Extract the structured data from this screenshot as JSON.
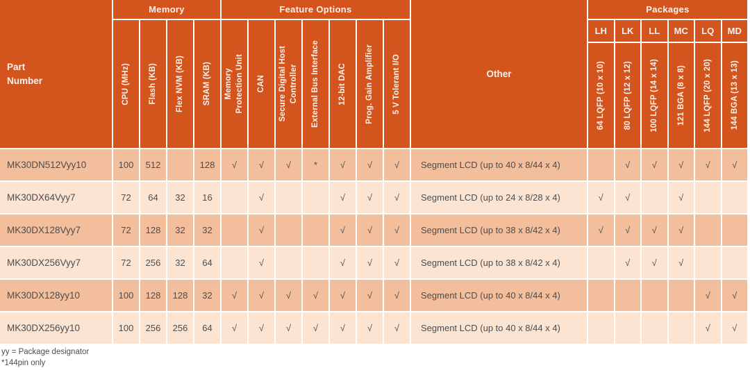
{
  "header": {
    "part_number": "Part\nNumber",
    "groups": {
      "memory": "Memory",
      "feature_options": "Feature Options",
      "other": "Other",
      "packages": "Packages"
    },
    "memory_columns": [
      "CPU (MHz)",
      "Flash (KB)",
      "Flex NVM (KB)",
      "SRAM (KB)"
    ],
    "feature_columns": [
      "Memory\nProtection Unit",
      "CAN",
      "Secure Digital Host\nController",
      "External Bus Interface",
      "12-bit DAC",
      "Prog. Gain Amplifier",
      "5 V Tolerant I/O"
    ],
    "package_codes": [
      "LH",
      "LK",
      "LL",
      "MC",
      "LQ",
      "MD"
    ],
    "package_descriptions": [
      "64 LQFP  (10 x 10)",
      "80 LQFP  (12 x 12)",
      "100 LQFP  (14 x 14)",
      "121 BGA  (8 x 8)",
      "144 LQFP  (20 x 20)",
      "144 BGA  (13 x 13)"
    ]
  },
  "check_symbol": "√",
  "rows": [
    {
      "part": "MK30DN512Vyy10",
      "cpu": "100",
      "flash": "512",
      "flexnvm": "",
      "sram": "128",
      "features": [
        "√",
        "√",
        "√",
        "*",
        "√",
        "√",
        "√"
      ],
      "other": "Segment LCD (up to 40 x 8/44 x 4)",
      "packages": [
        "",
        "√",
        "√",
        "√",
        "√",
        "√"
      ]
    },
    {
      "part": "MK30DX64Vyy7",
      "cpu": "72",
      "flash": "64",
      "flexnvm": "32",
      "sram": "16",
      "features": [
        "",
        "√",
        "",
        "",
        "√",
        "√",
        "√"
      ],
      "other": "Segment LCD (up to 24 x 8/28 x 4)",
      "packages": [
        "√",
        "√",
        "",
        "√",
        "",
        ""
      ]
    },
    {
      "part": "MK30DX128Vyy7",
      "cpu": "72",
      "flash": "128",
      "flexnvm": "32",
      "sram": "32",
      "features": [
        "",
        "√",
        "",
        "",
        "√",
        "√",
        "√"
      ],
      "other": "Segment LCD (up to 38 x 8/42 x 4)",
      "packages": [
        "√",
        "√",
        "√",
        "√",
        "",
        ""
      ]
    },
    {
      "part": "MK30DX256Vyy7",
      "cpu": "72",
      "flash": "256",
      "flexnvm": "32",
      "sram": "64",
      "features": [
        "",
        "√",
        "",
        "",
        "√",
        "√",
        "√"
      ],
      "other": "Segment LCD (up to 38 x 8/42 x 4)",
      "packages": [
        "",
        "√",
        "√",
        "√",
        "",
        ""
      ]
    },
    {
      "part": "MK30DX128yy10",
      "cpu": "100",
      "flash": "128",
      "flexnvm": "128",
      "sram": "32",
      "features": [
        "√",
        "√",
        "√",
        "√",
        "√",
        "√",
        "√"
      ],
      "other": "Segment LCD (up to 40 x 8/44 x 4)",
      "packages": [
        "",
        "",
        "",
        "",
        "√",
        "√"
      ]
    },
    {
      "part": "MK30DX256yy10",
      "cpu": "100",
      "flash": "256",
      "flexnvm": "256",
      "sram": "64",
      "features": [
        "√",
        "√",
        "√",
        "√",
        "√",
        "√",
        "√"
      ],
      "other": "Segment LCD (up to 40 x 8/44 x 4)",
      "packages": [
        "",
        "",
        "",
        "",
        "√",
        "√"
      ]
    }
  ],
  "footnotes": [
    "yy = Package designator",
    "*144pin only"
  ],
  "colors": {
    "header_orange": "#D4541E",
    "row_dark": "#F2BE9C",
    "row_light": "#FBE4D2",
    "text_dark": "#4D4D4F",
    "grid_line": "#FFFFFF"
  }
}
